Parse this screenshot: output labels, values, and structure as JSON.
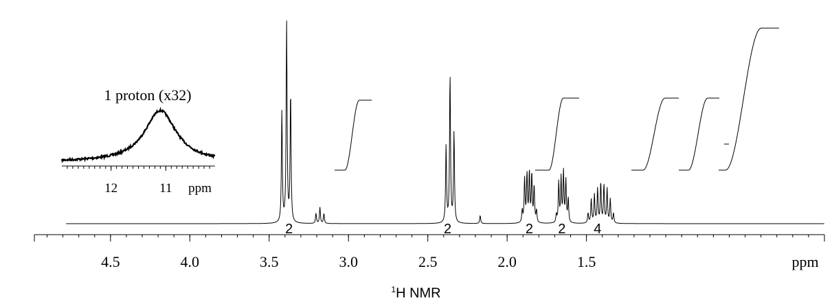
{
  "chart_data": {
    "type": "line",
    "title": "NMR",
    "title_superscript": "1",
    "title_prefix": "H",
    "xlabel": "ppm",
    "ylabel": "",
    "xlim": [
      4.98,
      0.0
    ],
    "x_reversed": true,
    "x_ticks": [
      {
        "value": 4.5,
        "label": "4.5"
      },
      {
        "value": 4.0,
        "label": "4.0"
      },
      {
        "value": 3.5,
        "label": "3.5"
      },
      {
        "value": 3.0,
        "label": "3.0"
      },
      {
        "value": 2.5,
        "label": "2.5"
      },
      {
        "value": 2.0,
        "label": "2.0"
      },
      {
        "value": 1.5,
        "label": "1.5"
      }
    ],
    "peaks": [
      {
        "name": "triplet-3.39",
        "center": 3.39,
        "lines": [
          3.42,
          3.39,
          3.365
        ],
        "heights": [
          0.55,
          1.0,
          0.65
        ],
        "integral": "2"
      },
      {
        "name": "impurity-3.18",
        "center": 3.18,
        "lines": [
          3.205,
          3.18,
          3.155
        ],
        "heights": [
          0.05,
          0.08,
          0.05
        ],
        "integral": ""
      },
      {
        "name": "triplet-2.36",
        "center": 2.36,
        "lines": [
          2.385,
          2.36,
          2.335
        ],
        "heights": [
          0.38,
          0.74,
          0.45
        ],
        "integral": "2"
      },
      {
        "name": "impurity-2.17",
        "center": 2.17,
        "lines": [
          2.17
        ],
        "heights": [
          0.04
        ],
        "integral": ""
      },
      {
        "name": "multiplet-1.86",
        "center": 1.86,
        "lines": [
          1.905,
          1.89,
          1.875,
          1.86,
          1.845,
          1.83,
          1.815
        ],
        "heights": [
          0.06,
          0.22,
          0.24,
          0.25,
          0.24,
          0.18,
          0.06
        ],
        "integral": "2"
      },
      {
        "name": "multiplet-1.65",
        "center": 1.65,
        "lines": [
          1.69,
          1.675,
          1.66,
          1.645,
          1.63,
          1.615
        ],
        "heights": [
          0.04,
          0.2,
          0.22,
          0.25,
          0.21,
          0.12
        ],
        "integral": "2"
      },
      {
        "name": "multiplet-1.42",
        "center": 1.42,
        "lines": [
          1.49,
          1.47,
          1.45,
          1.43,
          1.41,
          1.39,
          1.37,
          1.35,
          1.33
        ],
        "heights": [
          0.05,
          0.12,
          0.14,
          0.17,
          0.2,
          0.19,
          0.17,
          0.12,
          0.05
        ],
        "integral": "4"
      }
    ],
    "inset": {
      "label": "1 proton (x32)",
      "xlabel": "ppm",
      "xlim": [
        12.9,
        10.1
      ],
      "x_ticks": [
        {
          "value": 12,
          "label": "12"
        },
        {
          "value": 11,
          "label": "11"
        }
      ],
      "peak_center": 11.1,
      "peak_height": 0.75,
      "integral": "1"
    },
    "grid": false,
    "legend": "none"
  }
}
